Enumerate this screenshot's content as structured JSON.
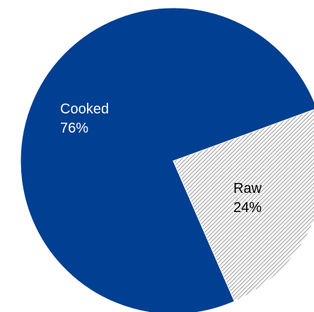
{
  "chart_data": {
    "type": "pie",
    "title": "",
    "slices": [
      {
        "label": "Cooked",
        "value": 76,
        "value_label": "76%",
        "color": "#003f91",
        "fill": "solid"
      },
      {
        "label": "Raw",
        "value": 24,
        "value_label": "24%",
        "color": "#555555",
        "fill": "hatched"
      }
    ],
    "legend": "none"
  }
}
